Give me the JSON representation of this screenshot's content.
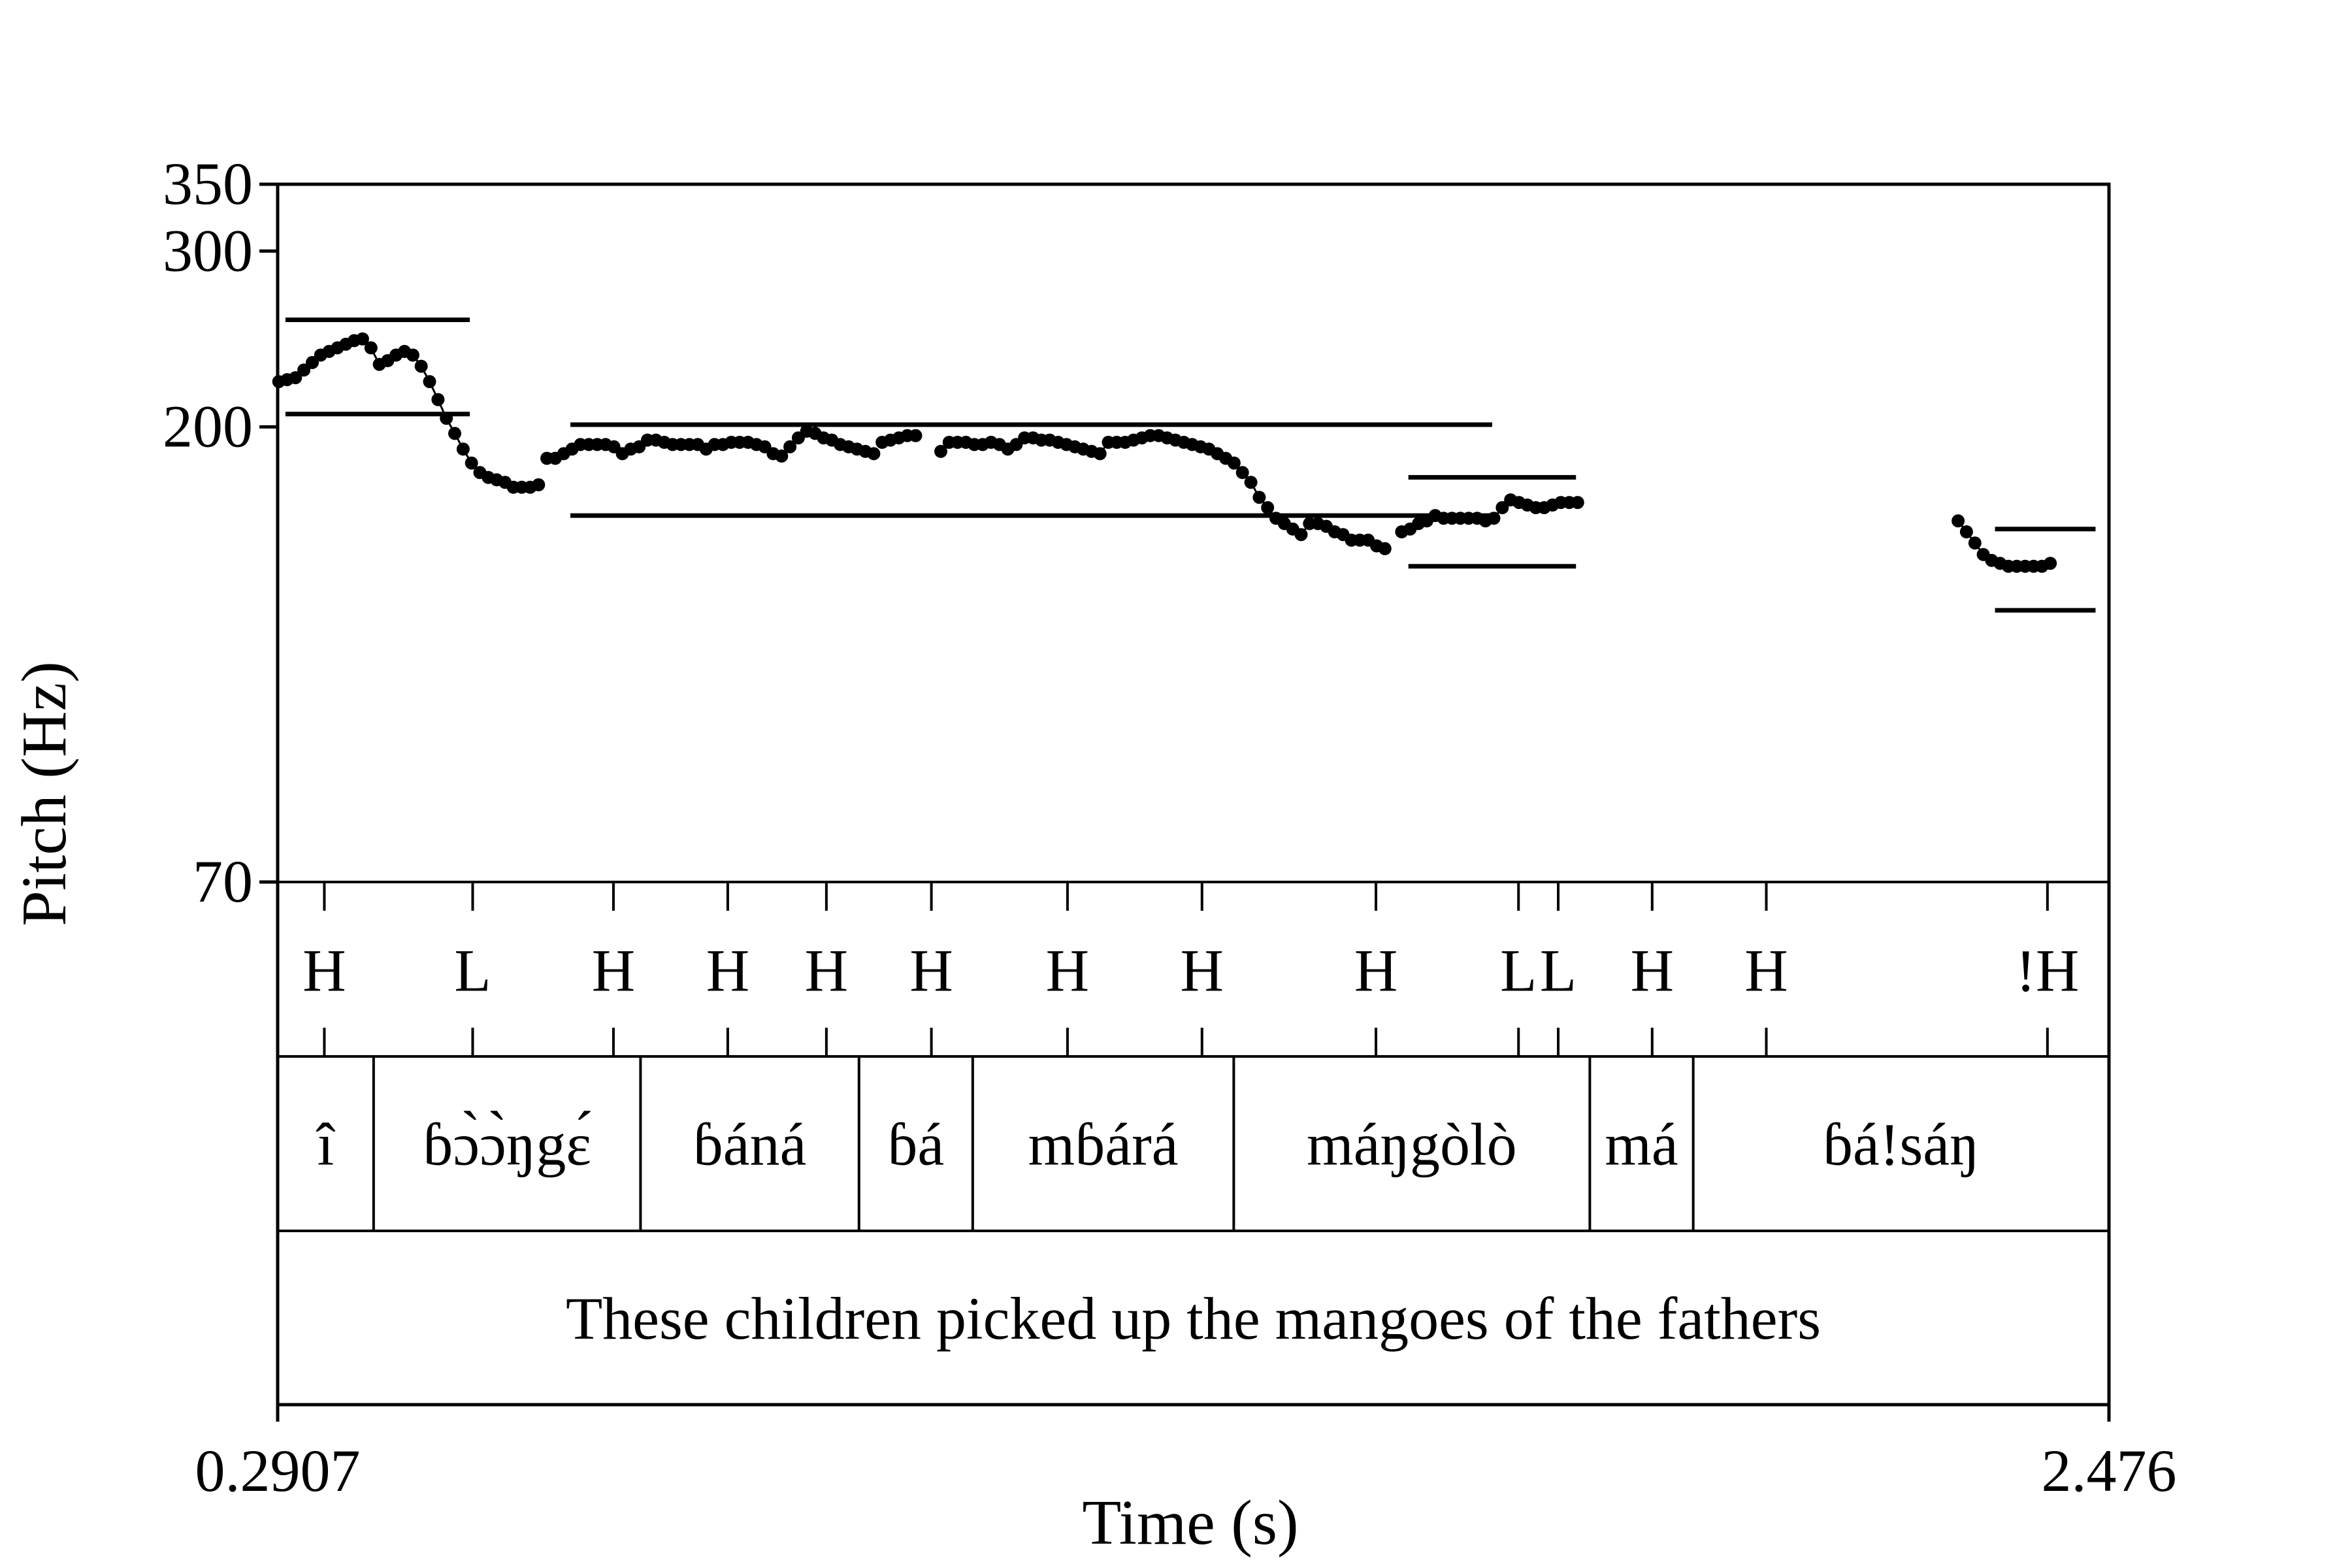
{
  "chart_data": {
    "type": "scatter",
    "xlabel": "Time (s)",
    "ylabel": "Pitch (Hz)",
    "xlim": [
      0.2907,
      2.476
    ],
    "x_tick_labels": [
      "0.2907",
      "2.476"
    ],
    "ylim": [
      70,
      350
    ],
    "y_scale": "log",
    "y_ticks": [
      70,
      200,
      300,
      350
    ],
    "grid": false,
    "legend": "none",
    "pitch_segments": [
      {
        "points": [
          [
            0.292,
            222
          ],
          [
            0.302,
            223
          ],
          [
            0.312,
            224
          ],
          [
            0.322,
            228
          ],
          [
            0.332,
            232
          ],
          [
            0.342,
            236
          ],
          [
            0.352,
            238
          ],
          [
            0.362,
            240
          ],
          [
            0.372,
            242
          ],
          [
            0.382,
            244
          ],
          [
            0.392,
            245
          ],
          [
            0.402,
            240
          ],
          [
            0.412,
            231
          ],
          [
            0.422,
            233
          ],
          [
            0.432,
            236
          ],
          [
            0.442,
            238
          ],
          [
            0.452,
            236
          ],
          [
            0.462,
            230
          ],
          [
            0.472,
            222
          ],
          [
            0.482,
            213
          ],
          [
            0.492,
            204
          ],
          [
            0.502,
            197
          ],
          [
            0.512,
            190
          ],
          [
            0.522,
            184
          ],
          [
            0.532,
            180
          ],
          [
            0.542,
            178
          ],
          [
            0.552,
            177
          ],
          [
            0.562,
            176
          ],
          [
            0.572,
            174
          ],
          [
            0.582,
            174
          ],
          [
            0.592,
            174
          ],
          [
            0.602,
            175
          ]
        ]
      },
      {
        "points": [
          [
            0.612,
            186
          ],
          [
            0.622,
            186
          ],
          [
            0.632,
            188
          ],
          [
            0.642,
            190
          ],
          [
            0.652,
            192
          ],
          [
            0.662,
            192
          ],
          [
            0.672,
            192
          ],
          [
            0.682,
            192
          ],
          [
            0.692,
            191
          ],
          [
            0.702,
            188
          ],
          [
            0.712,
            190
          ],
          [
            0.722,
            191
          ],
          [
            0.732,
            194
          ],
          [
            0.742,
            194
          ],
          [
            0.752,
            193
          ],
          [
            0.762,
            192
          ],
          [
            0.772,
            192
          ],
          [
            0.782,
            192
          ],
          [
            0.792,
            192
          ],
          [
            0.802,
            190
          ],
          [
            0.812,
            192
          ],
          [
            0.822,
            192
          ],
          [
            0.832,
            193
          ],
          [
            0.842,
            193
          ],
          [
            0.852,
            193
          ],
          [
            0.862,
            192
          ],
          [
            0.872,
            191
          ],
          [
            0.882,
            188
          ],
          [
            0.892,
            187
          ],
          [
            0.902,
            191
          ],
          [
            0.912,
            195
          ],
          [
            0.922,
            198
          ],
          [
            0.932,
            197
          ],
          [
            0.942,
            195
          ],
          [
            0.952,
            194
          ],
          [
            0.962,
            192
          ],
          [
            0.972,
            191
          ],
          [
            0.982,
            190
          ],
          [
            0.992,
            189
          ],
          [
            1.002,
            188
          ]
        ]
      },
      {
        "points": [
          [
            1.012,
            193
          ],
          [
            1.022,
            194
          ],
          [
            1.032,
            195
          ],
          [
            1.042,
            196
          ],
          [
            1.052,
            196
          ]
        ]
      },
      {
        "points": [
          [
            1.082,
            189
          ],
          [
            1.092,
            193
          ],
          [
            1.102,
            193
          ],
          [
            1.112,
            193
          ],
          [
            1.122,
            192
          ],
          [
            1.132,
            192
          ],
          [
            1.142,
            193
          ],
          [
            1.152,
            192
          ],
          [
            1.162,
            190
          ],
          [
            1.172,
            192
          ],
          [
            1.182,
            195
          ],
          [
            1.192,
            195
          ],
          [
            1.202,
            194
          ],
          [
            1.212,
            194
          ],
          [
            1.222,
            193
          ],
          [
            1.232,
            192
          ],
          [
            1.242,
            191
          ],
          [
            1.252,
            190
          ],
          [
            1.262,
            189
          ],
          [
            1.272,
            188
          ],
          [
            1.282,
            193
          ],
          [
            1.292,
            193
          ],
          [
            1.302,
            193
          ],
          [
            1.312,
            194
          ],
          [
            1.322,
            195
          ],
          [
            1.332,
            196
          ],
          [
            1.342,
            196
          ],
          [
            1.352,
            195
          ],
          [
            1.362,
            194
          ],
          [
            1.372,
            193
          ],
          [
            1.382,
            192
          ],
          [
            1.392,
            191
          ],
          [
            1.402,
            190
          ],
          [
            1.412,
            188
          ],
          [
            1.422,
            186
          ],
          [
            1.432,
            184
          ],
          [
            1.442,
            180
          ],
          [
            1.452,
            176
          ],
          [
            1.462,
            170
          ],
          [
            1.472,
            166
          ],
          [
            1.482,
            162
          ],
          [
            1.492,
            160
          ],
          [
            1.502,
            158
          ],
          [
            1.512,
            156
          ],
          [
            1.522,
            160
          ],
          [
            1.532,
            160
          ],
          [
            1.542,
            159
          ],
          [
            1.552,
            157
          ],
          [
            1.562,
            156
          ],
          [
            1.572,
            154
          ],
          [
            1.582,
            154
          ],
          [
            1.592,
            154
          ],
          [
            1.602,
            152
          ],
          [
            1.612,
            151
          ]
        ]
      },
      {
        "points": [
          [
            1.632,
            157
          ],
          [
            1.642,
            158
          ],
          [
            1.652,
            160
          ],
          [
            1.662,
            161
          ],
          [
            1.672,
            163
          ],
          [
            1.682,
            162
          ],
          [
            1.692,
            162
          ],
          [
            1.702,
            162
          ],
          [
            1.712,
            162
          ],
          [
            1.722,
            162
          ],
          [
            1.732,
            161
          ],
          [
            1.742,
            162
          ],
          [
            1.752,
            166
          ],
          [
            1.762,
            169
          ],
          [
            1.772,
            168
          ],
          [
            1.782,
            167
          ],
          [
            1.792,
            166
          ],
          [
            1.802,
            166
          ],
          [
            1.812,
            167
          ],
          [
            1.822,
            168
          ],
          [
            1.832,
            168
          ],
          [
            1.842,
            168
          ]
        ]
      },
      {
        "points": [
          [
            2.296,
            161
          ],
          [
            2.306,
            157
          ],
          [
            2.316,
            153
          ],
          [
            2.326,
            149
          ],
          [
            2.336,
            147
          ],
          [
            2.346,
            146
          ],
          [
            2.356,
            145
          ],
          [
            2.366,
            145
          ],
          [
            2.376,
            145
          ],
          [
            2.386,
            145
          ],
          [
            2.396,
            145
          ],
          [
            2.406,
            146
          ]
        ]
      }
    ],
    "pitch_range_lines": [
      {
        "x": [
          0.3,
          0.52
        ],
        "y": 256
      },
      {
        "x": [
          0.3,
          0.52
        ],
        "y": 206
      },
      {
        "x": [
          0.64,
          1.74
        ],
        "y": 201
      },
      {
        "x": [
          0.64,
          1.74
        ],
        "y": 163
      },
      {
        "x": [
          1.64,
          1.84
        ],
        "y": 178
      },
      {
        "x": [
          1.64,
          1.84
        ],
        "y": 145
      },
      {
        "x": [
          2.34,
          2.46
        ],
        "y": 158
      },
      {
        "x": [
          2.34,
          2.46
        ],
        "y": 131
      }
    ],
    "tiers": [
      {
        "kind": "points",
        "items": [
          {
            "x": 0.3464,
            "label": "H"
          },
          {
            "x": 0.5234,
            "label": "L"
          },
          {
            "x": 0.6914,
            "label": "H"
          },
          {
            "x": 0.8278,
            "label": "H"
          },
          {
            "x": 0.9455,
            "label": "H"
          },
          {
            "x": 1.0708,
            "label": "H"
          },
          {
            "x": 1.2332,
            "label": "H"
          },
          {
            "x": 1.3937,
            "label": "H"
          },
          {
            "x": 1.6013,
            "label": "H"
          },
          {
            "x": 1.7714,
            "label": "L"
          },
          {
            "x": 1.8188,
            "label": "L"
          },
          {
            "x": 1.9309,
            "label": "H"
          },
          {
            "x": 2.0671,
            "label": "H"
          },
          {
            "x": 2.4026,
            "label": "!H"
          }
        ]
      },
      {
        "kind": "intervals",
        "boundaries": [
          0.2907,
          0.4052,
          0.7237,
          0.9844,
          1.1201,
          1.4316,
          1.8565,
          1.9799,
          2.476
        ],
        "labels": [
          "î",
          "ɓɔ̀ɔ̀ŋgɛ́",
          "ɓáná",
          "ɓá",
          "mɓárá",
          "máŋgòlò",
          "má",
          "ɓá!sáŋ"
        ]
      },
      {
        "kind": "intervals",
        "boundaries": [
          0.2907,
          2.476
        ],
        "labels": [
          "These children picked up the mangoes of the fathers"
        ]
      }
    ]
  }
}
